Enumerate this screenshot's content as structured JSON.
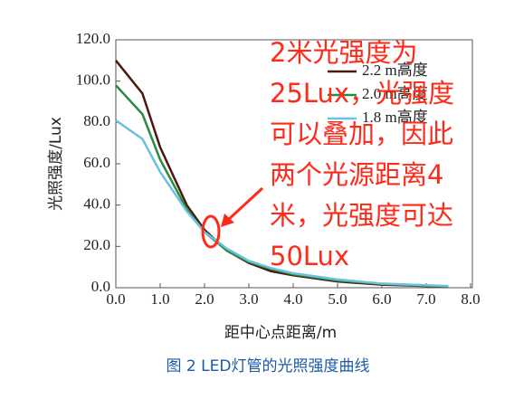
{
  "chart_data": {
    "type": "line",
    "xlabel": "距中心点距离/m",
    "ylabel": "光照强度/Lux",
    "caption": "图 2 LED灯管的光照强度曲线",
    "annotation": [
      "2米光强度为",
      "25Lux，光强度",
      "可以叠加，因此",
      "两个光源距离4",
      "米，光强度可达",
      "50Lux"
    ],
    "x": [
      0,
      0.6,
      1.0,
      1.6,
      2.0,
      2.5,
      3.0,
      3.5,
      4.0,
      5.0,
      6.0,
      7.0,
      7.5
    ],
    "series": [
      {
        "name": "2.2 m高度",
        "color": "#4a1a0e",
        "values": [
          110,
          94,
          68,
          40,
          28,
          18,
          12,
          8,
          6,
          3,
          1.5,
          0.8,
          0.5
        ]
      },
      {
        "name": "2.0 m高度",
        "color": "#2a8a40",
        "values": [
          98,
          84,
          62,
          38,
          27,
          18,
          12.5,
          9,
          6.5,
          3.5,
          1.8,
          1,
          0.6
        ]
      },
      {
        "name": "1.8 m高度",
        "color": "#6cc0e0",
        "values": [
          81,
          72,
          56,
          37,
          27,
          19,
          13,
          9.5,
          7,
          4,
          2,
          1.2,
          0.8
        ]
      }
    ],
    "xlim": [
      0,
      8
    ],
    "ylim": [
      0,
      120
    ],
    "xticks": [
      {
        "value": 0,
        "label": "0.0"
      },
      {
        "value": 1,
        "label": "1.0"
      },
      {
        "value": 2,
        "label": "2.0"
      },
      {
        "value": 3,
        "label": "3.0"
      },
      {
        "value": 4,
        "label": "4.0"
      },
      {
        "value": 5,
        "label": "5.0"
      },
      {
        "value": 6,
        "label": "6.0"
      },
      {
        "value": 7,
        "label": "7.0"
      },
      {
        "value": 8,
        "label": "8.0"
      }
    ],
    "yticks": [
      {
        "value": 0,
        "label": "0.0"
      },
      {
        "value": 20,
        "label": "20.0"
      },
      {
        "value": 40,
        "label": "40.0"
      },
      {
        "value": 60,
        "label": "60.0"
      },
      {
        "value": 80,
        "label": "80.0"
      },
      {
        "value": 100,
        "label": "100.0"
      },
      {
        "value": 120,
        "label": "120.0"
      }
    ],
    "grid": false
  }
}
